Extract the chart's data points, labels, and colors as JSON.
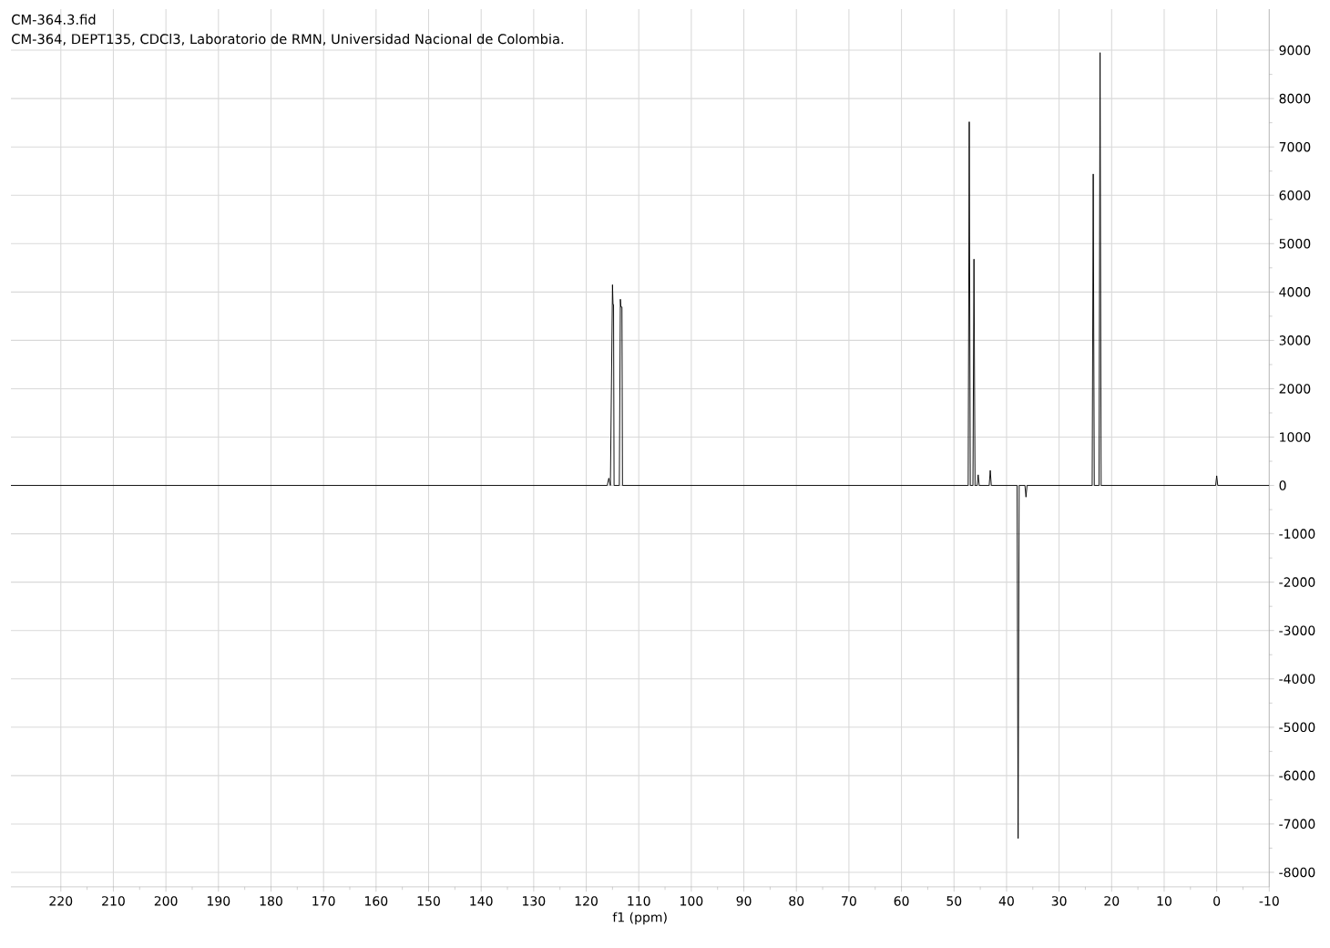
{
  "chart_data": {
    "type": "line",
    "title": "CM-364.3.fid",
    "subtitle": "CM-364, DEPT135, CDCl3, Laboratorio de RMN, Universidad Nacional de Colombia.",
    "xlabel": "f1 (ppm)",
    "x": [
      229.5,
      200,
      170,
      140,
      116.0,
      115.7,
      115.4,
      115.0,
      114.9,
      114.8,
      114.7,
      113.7,
      113.5,
      113.4,
      113.2,
      113.1,
      112.9,
      90,
      60,
      47.3,
      47.1,
      46.9,
      46.4,
      46.2,
      46.0,
      45.6,
      45.4,
      45.2,
      43.3,
      43.1,
      42.9,
      38.0,
      37.8,
      37.6,
      36.5,
      36.3,
      36.1,
      23.7,
      23.5,
      23.3,
      22.4,
      22.2,
      22.0,
      0.2,
      0.0,
      -0.2,
      -10
    ],
    "values": [
      0,
      0,
      0,
      0,
      0,
      150,
      0,
      4150,
      3740,
      3740,
      0,
      0,
      3850,
      3690,
      3690,
      0,
      0,
      0,
      0,
      0,
      7520,
      0,
      0,
      4680,
      0,
      0,
      220,
      0,
      0,
      310,
      0,
      0,
      -7300,
      0,
      0,
      -240,
      0,
      0,
      6440,
      0,
      0,
      8950,
      0,
      0,
      200,
      0,
      0
    ],
    "color": "#000000",
    "xlim": [
      229.5,
      -10
    ],
    "ylim": [
      -8300,
      9850
    ],
    "xticks": [
      220,
      210,
      200,
      190,
      180,
      170,
      160,
      150,
      140,
      130,
      120,
      110,
      100,
      90,
      80,
      70,
      60,
      50,
      40,
      30,
      20,
      10,
      0,
      -10
    ],
    "yticks": [
      -8000,
      -7000,
      -6000,
      -5000,
      -4000,
      -3000,
      -2000,
      -1000,
      0,
      1000,
      2000,
      3000,
      4000,
      5000,
      6000,
      7000,
      8000,
      9000
    ],
    "grid": true
  }
}
